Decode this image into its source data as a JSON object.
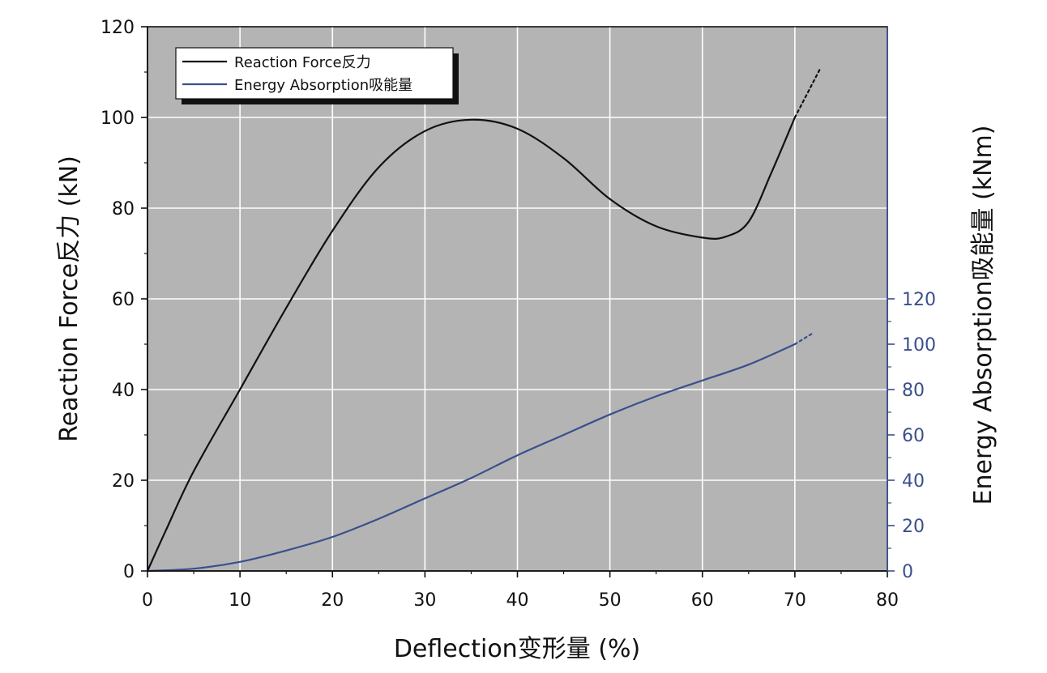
{
  "chart_data": {
    "type": "line",
    "title": "",
    "xlabel": "Deflection变形量 (%)",
    "ylabel": "Reaction Force反力 (kN)",
    "y2label": "Energy Absorption吸能量 (kNm)",
    "xlim": [
      0,
      80
    ],
    "ylim": [
      0,
      120
    ],
    "y2lim": [
      0,
      240
    ],
    "x_ticks": [
      0,
      10,
      20,
      30,
      40,
      50,
      60,
      70,
      80
    ],
    "y_ticks": [
      0,
      20,
      40,
      60,
      80,
      100,
      120
    ],
    "y2_ticks": [
      0,
      20,
      40,
      60,
      80,
      100,
      120
    ],
    "grid": true,
    "legend_position": "top-left",
    "background": "#b4b4b4",
    "series": [
      {
        "name": "Reaction Force反力",
        "axis": "left",
        "color": "#111111",
        "x": [
          0,
          2,
          5,
          10,
          15,
          20,
          25,
          30,
          35,
          40,
          45,
          50,
          55,
          60,
          62.5,
          65,
          67.5,
          70
        ],
        "values": [
          0,
          9,
          22,
          40,
          58,
          75,
          89,
          97,
          99.5,
          97.5,
          91,
          82,
          76,
          73.5,
          73.7,
          77,
          88,
          100
        ],
        "extension": {
          "x": [
            70,
            72.8
          ],
          "values": [
            100,
            111
          ]
        }
      },
      {
        "name": "Energy Absorption吸能量",
        "axis": "right",
        "color": "#3b4f8c",
        "x": [
          0,
          5,
          10,
          15,
          20,
          25,
          30,
          35,
          40,
          45,
          50,
          55,
          60,
          65,
          70
        ],
        "values": [
          0,
          1,
          4,
          9,
          15,
          23,
          32,
          41,
          51,
          60,
          69,
          77,
          84,
          91,
          100
        ],
        "extension": {
          "x": [
            70,
            72
          ],
          "values": [
            100,
            105
          ]
        }
      }
    ]
  }
}
